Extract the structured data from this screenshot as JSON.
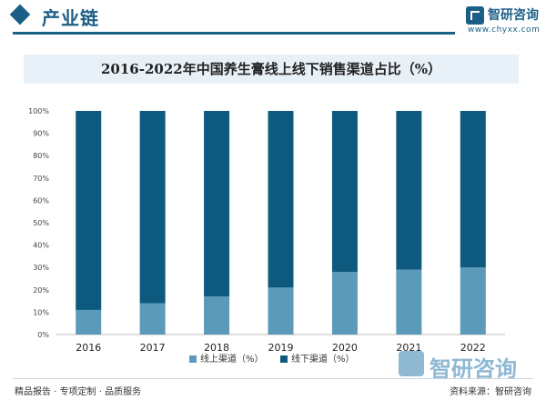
{
  "header": {
    "title": "产业链"
  },
  "brand": {
    "name": "智研咨询",
    "url": "www.chyxx.com"
  },
  "chart_title": "2016-2022年中国养生膏线上线下销售渠道占比（%）",
  "chart_data": {
    "type": "bar",
    "stacked": true,
    "categories": [
      "2016",
      "2017",
      "2018",
      "2019",
      "2020",
      "2021",
      "2022"
    ],
    "series": [
      {
        "name": "线上渠道（%）",
        "values": [
          11,
          14,
          17,
          21,
          28,
          29,
          30
        ],
        "color": "#5b9ab9"
      },
      {
        "name": "线下渠道（%）",
        "values": [
          89,
          86,
          83,
          79,
          72,
          71,
          70
        ],
        "color": "#0d5a7e"
      }
    ],
    "ylim": [
      0,
      100
    ],
    "yticks": [
      "0%",
      "10%",
      "20%",
      "30%",
      "40%",
      "50%",
      "60%",
      "70%",
      "80%",
      "90%",
      "100%"
    ],
    "legend_position": "bottom",
    "grid": false
  },
  "footer": {
    "left": "精品报告 · 专项定制 · 品质服务",
    "right": "资料来源：智研咨询"
  },
  "watermark": {
    "name": "智研咨询"
  }
}
